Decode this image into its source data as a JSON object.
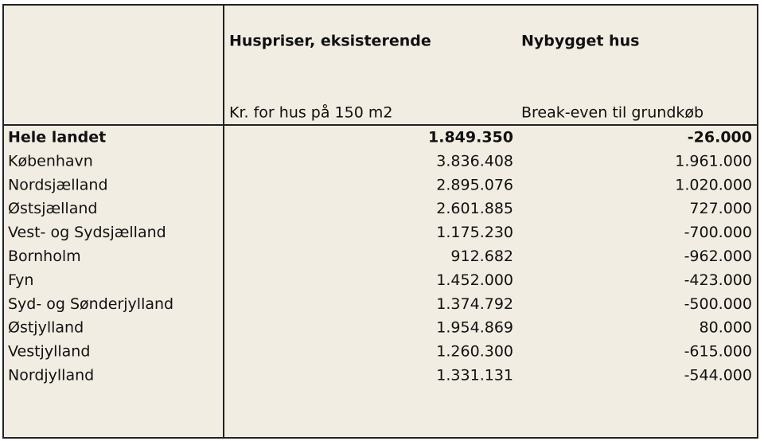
{
  "table": {
    "header": {
      "col1_title": "Huspriser, eksisterende",
      "col2_title": "Nybygget hus",
      "col1_sub": "Kr. for hus på 150 m2",
      "col2_sub": "Break-even til grundkøb"
    },
    "rows": [
      [
        "Hele landet",
        "1.849.350",
        "-26.000"
      ],
      [
        "København",
        "3.836.408",
        "1.961.000"
      ],
      [
        "Nordsjælland",
        "2.895.076",
        "1.020.000"
      ],
      [
        "Østsjælland",
        "2.601.885",
        "727.000"
      ],
      [
        "Vest- og Sydsjælland",
        "1.175.230",
        "-700.000"
      ],
      [
        "Bornholm",
        "912.682",
        "-962.000"
      ],
      [
        "Fyn",
        "1.452.000",
        "-423.000"
      ],
      [
        "Syd- og Sønderjylland",
        "1.374.792",
        "-500.000"
      ],
      [
        "Østjylland",
        "1.954.869",
        "80.000"
      ],
      [
        "Vestjylland",
        "1.260.300",
        "-615.000"
      ],
      [
        "Nordjylland",
        "1.331.131",
        "-544.000"
      ]
    ]
  }
}
